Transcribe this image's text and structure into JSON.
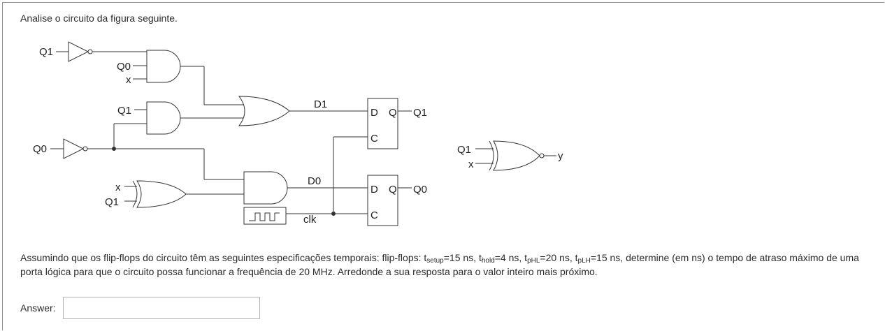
{
  "intro": "Analise o circuito da figura seguinte.",
  "circuit": {
    "labels": {
      "q1_in_top": "Q1",
      "q0_gate1": "Q0",
      "x_gate1": "x",
      "q1_gate2": "Q1",
      "q0_in": "Q0",
      "x_xor": "x",
      "q1_xor": "Q1",
      "d1": "D1",
      "d0": "D0",
      "clk": "clk",
      "ff1_d": "D",
      "ff1_q": "Q",
      "ff1_c": "C",
      "ff1_out": "Q1",
      "ff0_d": "D",
      "ff0_q": "Q",
      "ff0_c": "C",
      "ff0_out": "Q0",
      "xnor_q1": "Q1",
      "xnor_x": "x",
      "xnor_y": "y"
    }
  },
  "question": {
    "part1": "Assumindo que os flip-flops do circuito têm as seguintes especificações temporais: flip-flops: t",
    "setup_sub": "setup",
    "part2": "=15 ns, t",
    "hold_sub": "hold",
    "part3": "=4 ns, t",
    "phl_sub": "pHL",
    "part4": "=20 ns, t",
    "plh_sub": "pLH",
    "part5": "=15 ns, determine (em ns) o tempo de atraso  máximo de uma porta lógica para que o circuito possa funcionar a frequência de 20 MHz. Arredonde a sua resposta para o valor inteiro mais próximo."
  },
  "answer": {
    "label": "Answer:",
    "value": ""
  }
}
